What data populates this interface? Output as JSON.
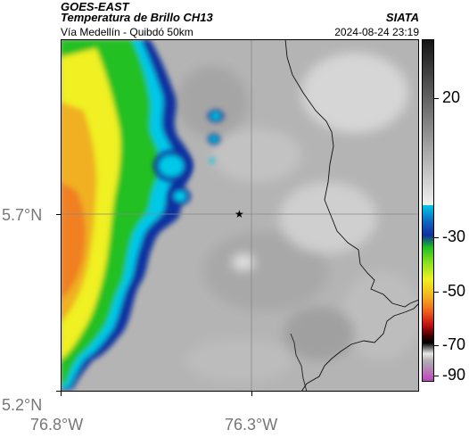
{
  "header": {
    "source": "GOES-EAST",
    "product": "Temperatura de Brillo CH13",
    "route": "Vía Medellín - Quibdó 50km",
    "organization": "SIATA",
    "datetime": "2024-08-24 23:19"
  },
  "map": {
    "x_axis_labels": [
      "76.8°W",
      "76.3°W"
    ],
    "y_axis_labels": [
      "5.7°N",
      "5.2°N"
    ],
    "marker_symbol": "★",
    "gridlines": true
  },
  "colorbar": {
    "tick_labels": [
      "20",
      "-30",
      "-50",
      "-70",
      "-90"
    ],
    "colors": {
      "warm_gray_top": "#1a1a1a",
      "warm_gray_bottom": "#f0f0f0",
      "cyan": "#00c8e8",
      "blue": "#1030a0",
      "green": "#20c020",
      "yellow": "#f0f020",
      "orange": "#f08020",
      "red": "#c01010",
      "black": "#000000",
      "magenta": "#c040c0"
    }
  }
}
